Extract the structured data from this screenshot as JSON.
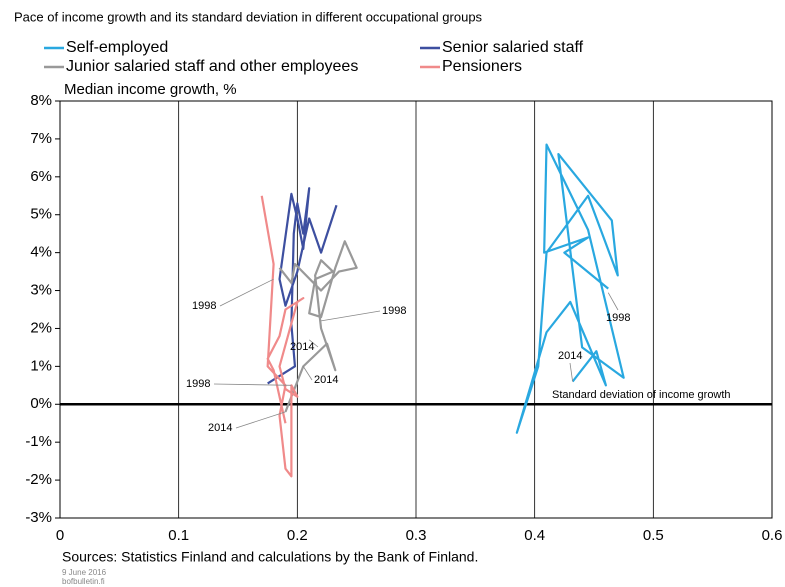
{
  "chart_data": {
    "type": "line",
    "subtitle": "Pace of income growth and its standard deviation in different occupational groups",
    "y_label": "Median income growth, %",
    "source": "Sources: Statistics Finland and calculations by the Bank of Finland.",
    "date_note": "9 June 2016",
    "site_note": "bofbulletin.fi",
    "annotations": [
      "1998",
      "2014",
      "1998",
      "2014",
      "1998",
      "2014",
      "Standard deviation of income growth"
    ],
    "xlim": [
      0,
      0.6
    ],
    "xticks": [
      0,
      0.1,
      0.2,
      0.3,
      0.4,
      0.5,
      0.6
    ],
    "ylim": [
      -3,
      8
    ],
    "yticks": [
      {
        "value": -3,
        "label": "-3%"
      },
      {
        "value": -2,
        "label": "-2%"
      },
      {
        "value": -1,
        "label": "-1%"
      },
      {
        "value": 0,
        "label": "0%"
      },
      {
        "value": 1,
        "label": "1%"
      },
      {
        "value": 2,
        "label": "2%"
      },
      {
        "value": 3,
        "label": "3%"
      },
      {
        "value": 4,
        "label": "4%"
      },
      {
        "value": 5,
        "label": "5%"
      },
      {
        "value": 6,
        "label": "6%"
      },
      {
        "value": 7,
        "label": "7%"
      },
      {
        "value": 8,
        "label": "8%"
      }
    ],
    "grid": true,
    "series": [
      {
        "name": "Self-employed",
        "color": "#29a8e0",
        "x": [
          0.462,
          0.425,
          0.445,
          0.408,
          0.41,
          0.445,
          0.475,
          0.44,
          0.42,
          0.465,
          0.47,
          0.445,
          0.41,
          0.403,
          0.385,
          0.41,
          0.43,
          0.46,
          0.452,
          0.432
        ],
        "values": [
          3.05,
          4.0,
          4.4,
          4.0,
          6.85,
          4.6,
          0.7,
          1.5,
          6.6,
          4.85,
          3.4,
          5.5,
          4.0,
          1.0,
          -0.75,
          1.9,
          2.7,
          0.5,
          1.4,
          0.6
        ]
      },
      {
        "name": "Senior salaried staff",
        "color": "#3d4fa0",
        "x": [
          0.175,
          0.198,
          0.195,
          0.197,
          0.2,
          0.205,
          0.21,
          0.205,
          0.2,
          0.195,
          0.185,
          0.19,
          0.2,
          0.21,
          0.22,
          0.233
        ],
        "values": [
          0.55,
          1.0,
          2.1,
          4.5,
          5.3,
          4.5,
          5.7,
          4.1,
          4.9,
          5.55,
          3.3,
          2.6,
          3.5,
          4.9,
          4.0,
          5.25
        ]
      },
      {
        "name": "Junior salaried staff and other employees",
        "color": "#999999",
        "x": [
          0.19,
          0.205,
          0.225,
          0.232,
          0.22,
          0.215,
          0.22,
          0.23,
          0.215,
          0.21,
          0.22,
          0.232,
          0.24,
          0.25,
          0.235,
          0.22,
          0.198,
          0.195,
          0.185
        ],
        "values": [
          -0.2,
          1.0,
          1.6,
          0.9,
          2.0,
          3.4,
          3.8,
          3.5,
          3.3,
          2.4,
          2.3,
          3.6,
          4.3,
          3.6,
          3.5,
          3.0,
          3.7,
          3.2,
          3.6
        ]
      },
      {
        "name": "Pensioners",
        "color": "#f08a8a",
        "x": [
          0.17,
          0.18,
          0.175,
          0.19,
          0.185,
          0.19,
          0.195,
          0.195,
          0.2,
          0.19,
          0.185,
          0.2,
          0.205,
          0.19,
          0.185,
          0.175,
          0.18,
          0.19
        ],
        "values": [
          5.5,
          3.7,
          1.0,
          0.5,
          -0.3,
          -1.7,
          -1.9,
          0.5,
          0.2,
          0.4,
          1.0,
          2.7,
          2.8,
          2.5,
          1.8,
          1.2,
          0.9,
          -0.5
        ]
      }
    ]
  }
}
